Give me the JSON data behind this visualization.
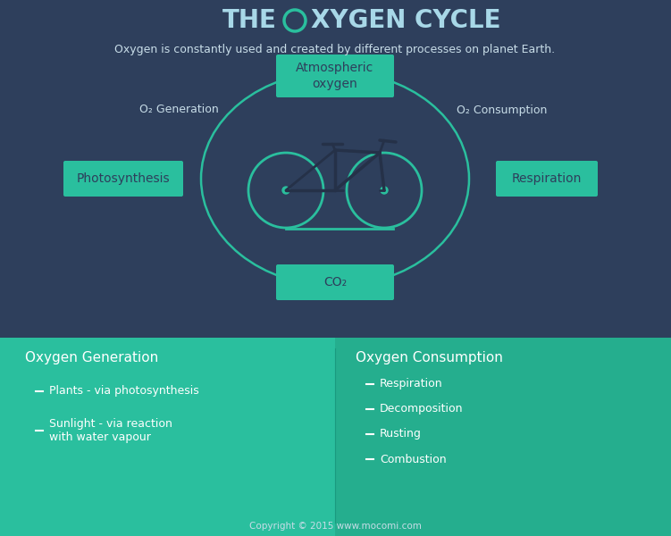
{
  "bg_top": "#2e3f5c",
  "bg_bottom_left": "#2abf9e",
  "bg_bottom_right": "#25ae8e",
  "teal": "#2abf9e",
  "white": "#ffffff",
  "title_color": "#a8d8e8",
  "subtitle_color": "#c8dde8",
  "box_color": "#2abf9e",
  "box_text_color": "#2e3f5c",
  "label_color": "#c8dde8",
  "bike_dark": "#253148",
  "title_left": "THE  ",
  "title_right": "XYGEN CYCLE",
  "subtitle": "Oxygen is constantly used and created by different processes on planet Earth.",
  "box_atm": "Atmospheric\noxygen",
  "box_photo": "Photosynthesis",
  "box_resp": "Respiration",
  "box_co2": "CO₂",
  "label_gen": "O₂ Generation",
  "label_cons": "O₂ Consumption",
  "gen_title": "Oxygen Generation",
  "cons_title": "Oxygen Consumption",
  "gen_items": [
    "Plants - via photosynthesis",
    "Sunlight - via reaction\nwith water vapour"
  ],
  "cons_items": [
    "Respiration",
    "Decomposition",
    "Rusting",
    "Combustion"
  ],
  "footer": "Copyright © 2015 www.mocomi.com"
}
